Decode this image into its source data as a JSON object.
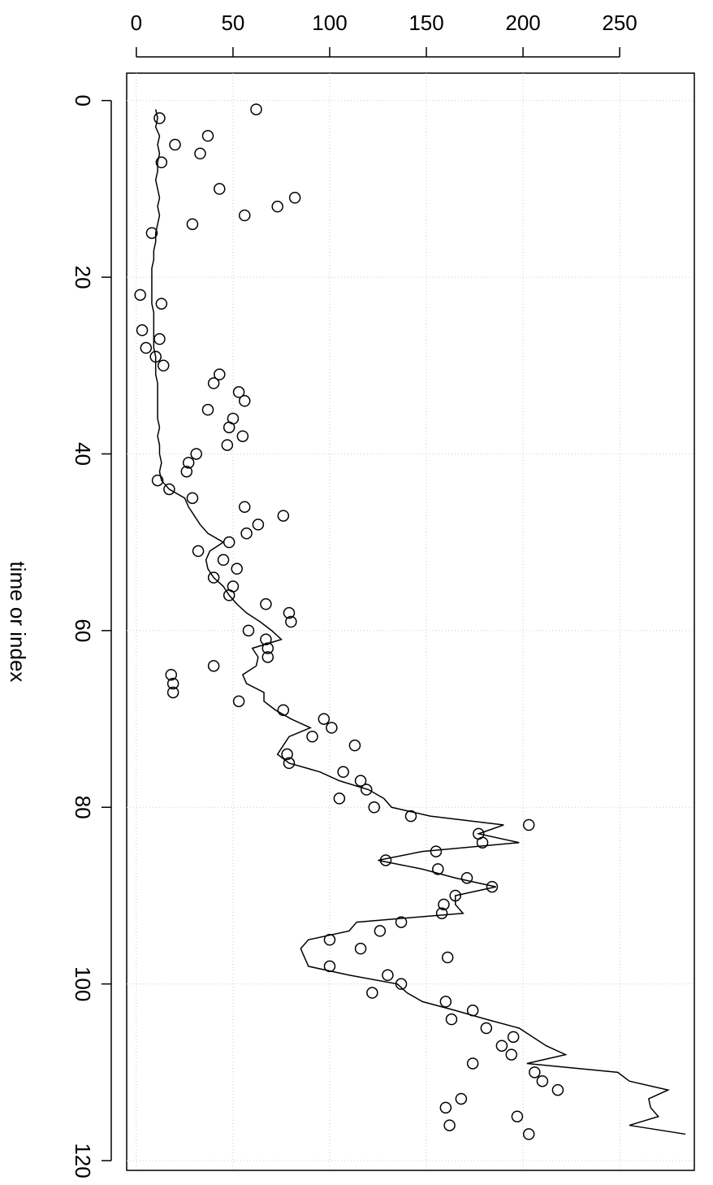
{
  "chart_data": {
    "type": "scatter_line",
    "xlabel": "time or index",
    "x": [
      1,
      2,
      3,
      4,
      5,
      6,
      7,
      8,
      9,
      10,
      11,
      12,
      13,
      14,
      15,
      16,
      17,
      18,
      19,
      20,
      21,
      22,
      23,
      24,
      25,
      26,
      27,
      28,
      29,
      30,
      31,
      32,
      33,
      34,
      35,
      36,
      37,
      38,
      39,
      40,
      41,
      42,
      43,
      44,
      45,
      46,
      47,
      48,
      49,
      50,
      51,
      52,
      53,
      54,
      55,
      56,
      57,
      58,
      59,
      60,
      61,
      62,
      63,
      64,
      65,
      66,
      67,
      68,
      69,
      70,
      71,
      72,
      73,
      74,
      75,
      76,
      77,
      78,
      79,
      80,
      81,
      82,
      83,
      84,
      85,
      86,
      87,
      88,
      89,
      90,
      91,
      92,
      93,
      94,
      95,
      96,
      97,
      98,
      99,
      100,
      101,
      102,
      103,
      104,
      105,
      106,
      107,
      108,
      109,
      110,
      111,
      112,
      113,
      114,
      115,
      116,
      117
    ],
    "xlim": [
      -3.1,
      121.1
    ],
    "xticks": [
      0,
      20,
      40,
      60,
      80,
      100,
      120
    ],
    "ylim": [
      -5,
      288.6
    ],
    "yticks": [
      0,
      50,
      100,
      150,
      200,
      250
    ],
    "grid": true,
    "series": [
      {
        "style": "points",
        "color": "#000000",
        "values": [
          62,
          12,
          null,
          37,
          20,
          33,
          13,
          null,
          null,
          43,
          82,
          73,
          56,
          29,
          8,
          null,
          null,
          null,
          null,
          null,
          null,
          2,
          13,
          null,
          null,
          3,
          12,
          5,
          10,
          14,
          43,
          40,
          53,
          56,
          37,
          50,
          48,
          55,
          47,
          31,
          27,
          26,
          11,
          17,
          29,
          56,
          76,
          63,
          57,
          48,
          32,
          45,
          52,
          40,
          50,
          48,
          67,
          79,
          80,
          58,
          67,
          68,
          68,
          40,
          18,
          19,
          19,
          53,
          76,
          97,
          101,
          91,
          113,
          78,
          79,
          107,
          116,
          119,
          105,
          123,
          142,
          203,
          177,
          179,
          155,
          129,
          156,
          171,
          184,
          165,
          159,
          158,
          137,
          126,
          100,
          116,
          161,
          100,
          130,
          137,
          122,
          160,
          174,
          163,
          181,
          195,
          189,
          194,
          174,
          206,
          210,
          218,
          168,
          160,
          197,
          162,
          203
        ]
      },
      {
        "style": "line",
        "color": "#000000",
        "values": [
          10,
          11,
          10,
          12,
          11,
          12,
          11,
          11,
          10,
          11,
          12,
          11,
          12,
          11,
          10,
          10,
          9,
          9,
          8,
          8,
          8,
          8,
          8,
          9,
          9,
          9,
          9,
          9,
          10,
          10,
          10,
          11,
          11,
          11,
          11,
          11,
          12,
          11,
          12,
          12,
          13,
          12,
          13,
          17,
          25,
          27,
          30,
          33,
          37,
          45,
          38,
          36,
          37,
          40,
          45,
          48,
          52,
          57,
          64,
          70,
          75,
          60,
          63,
          62,
          55,
          57,
          66,
          66,
          72,
          80,
          90,
          79,
          76,
          73,
          79,
          95,
          105,
          120,
          128,
          132,
          152,
          190,
          177,
          198,
          148,
          125,
          148,
          165,
          186,
          165,
          165,
          169,
          114,
          110,
          89,
          85,
          87,
          89,
          110,
          135,
          140,
          148,
          165,
          181,
          198,
          205,
          212,
          222,
          202,
          249,
          255,
          275,
          265,
          266,
          270,
          255,
          284
        ]
      }
    ]
  }
}
